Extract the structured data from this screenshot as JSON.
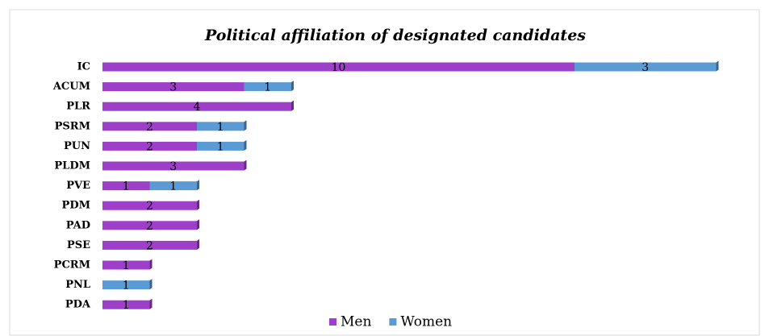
{
  "chart_data": {
    "type": "bar",
    "stacked": true,
    "orientation": "horizontal",
    "title": "Political affiliation of designated candidates",
    "categories": [
      "IC",
      "ACUM",
      "PLR",
      "PSRM",
      "PUN",
      "PLDM",
      "PVE",
      "PDM",
      "PAD",
      "PSE",
      "PCRM",
      "PNL",
      "PDA"
    ],
    "series": [
      {
        "name": "Men",
        "color": "#9e3fc9",
        "values": [
          10,
          3,
          4,
          2,
          2,
          3,
          1,
          2,
          2,
          2,
          1,
          null,
          1
        ]
      },
      {
        "name": "Women",
        "color": "#5b9bd5",
        "values": [
          3,
          1,
          null,
          1,
          1,
          null,
          1,
          null,
          null,
          null,
          null,
          1,
          null
        ]
      }
    ],
    "legend": "bottom"
  }
}
